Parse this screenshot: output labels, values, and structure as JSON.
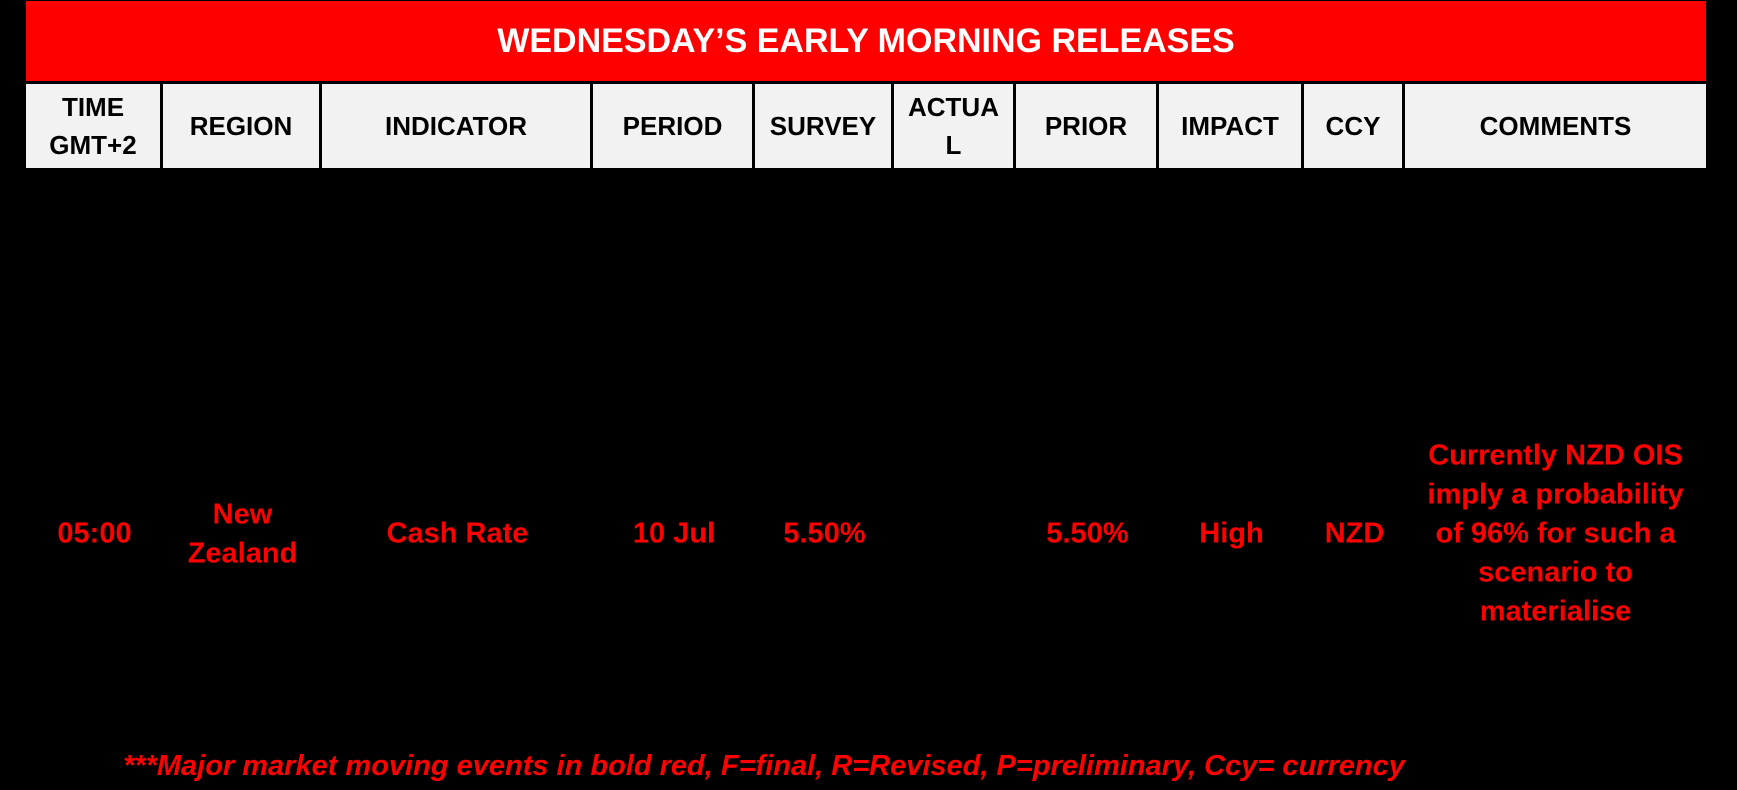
{
  "colors": {
    "page_bg": "#000000",
    "accent_red": "#FF0000",
    "title_text": "#FFFFFF",
    "header_bg": "#F2F2F2",
    "header_text": "#000000",
    "data_text": "#FF0000"
  },
  "title": "WEDNESDAY’S EARLY MORNING RELEASES",
  "table": {
    "headers": [
      {
        "label": [
          "TIME",
          "GMT+2"
        ]
      },
      {
        "label": "REGION"
      },
      {
        "label": "INDICATOR"
      },
      {
        "label": "PERIOD"
      },
      {
        "label": "SURVEY"
      },
      {
        "label": [
          "ACTUA",
          "L"
        ]
      },
      {
        "label": "PRIOR"
      },
      {
        "label": "IMPACT"
      },
      {
        "label": "CCY"
      },
      {
        "label": "COMMENTS"
      }
    ],
    "rows": [
      {
        "time": "05:00",
        "region": [
          "New",
          "Zealand"
        ],
        "indicator": "Cash Rate",
        "period": "10 Jul",
        "survey": "5.50%",
        "actual": "",
        "prior": "5.50%",
        "impact": "High",
        "ccy": "NZD",
        "comments": [
          "Currently NZD OIS",
          "imply a probability",
          "of 96% for such a",
          "scenario to",
          "materialise"
        ]
      }
    ]
  },
  "footnote": "***Major market moving events in bold red, F=final, R=Revised, P=preliminary, Ccy= currency"
}
